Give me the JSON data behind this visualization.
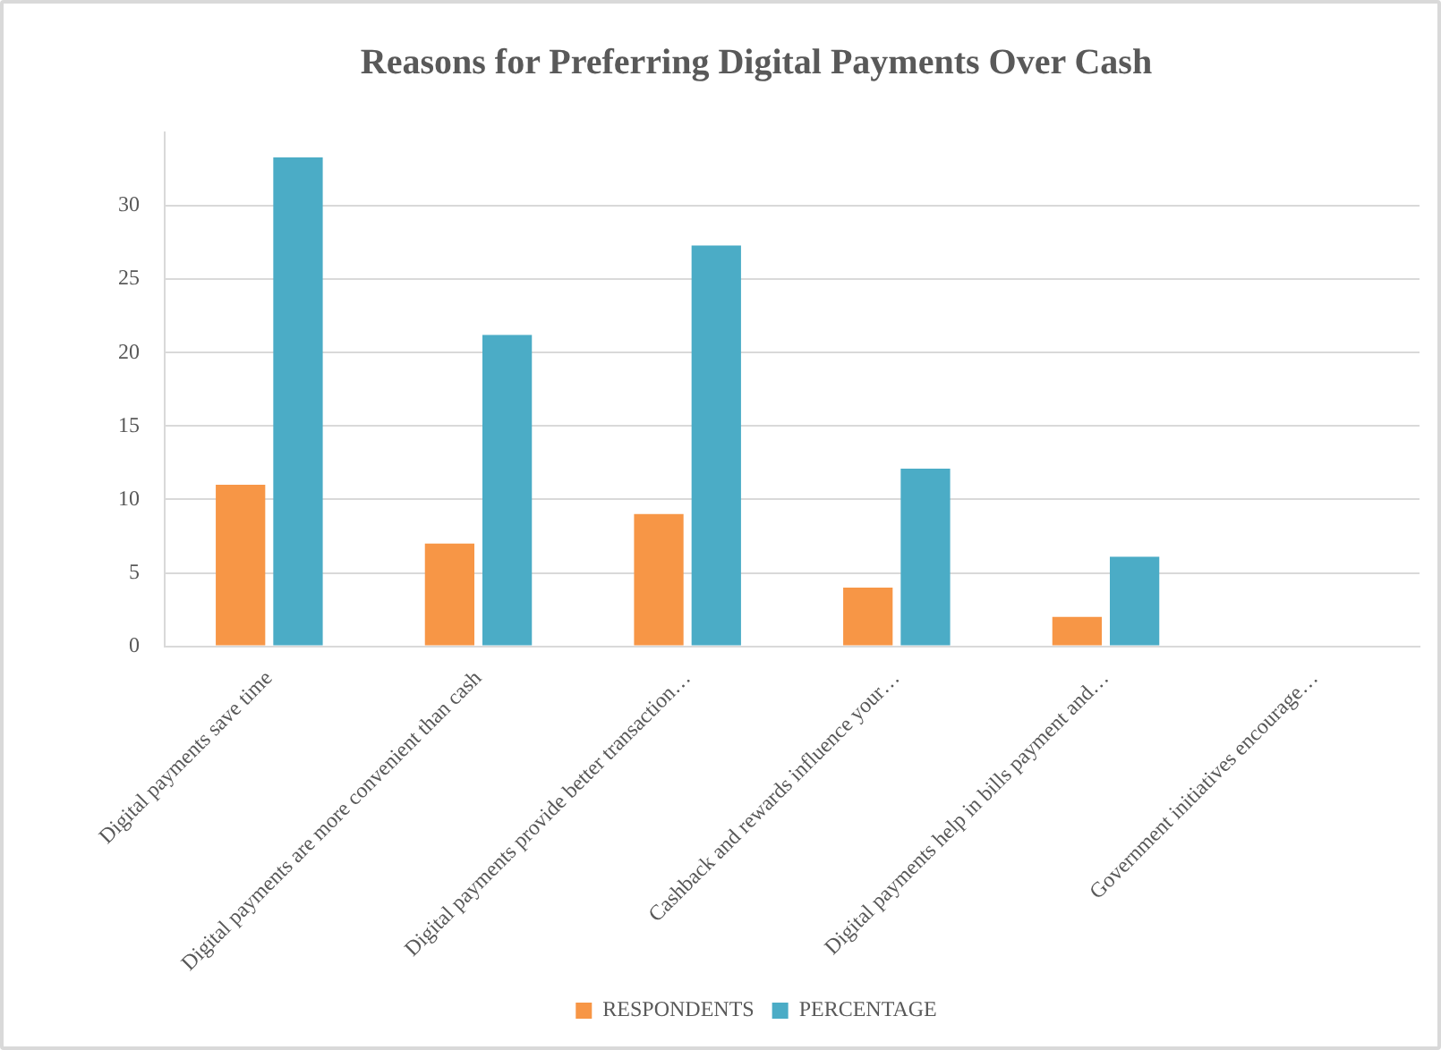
{
  "chart_data": {
    "type": "bar",
    "title": "Reasons for Preferring Digital Payments Over Cash",
    "categories": [
      "Digital payments save time",
      "Digital payments are more convenient than cash",
      "Digital payments provide better transaction…",
      "Cashback and rewards influence your…",
      "Digital payments help in bills payment and…",
      "Government initiatives encourage…"
    ],
    "series": [
      {
        "name": "RESPONDENTS",
        "color": "#f79646",
        "values": [
          11,
          7,
          9,
          4,
          2,
          0
        ]
      },
      {
        "name": "PERCENTAGE",
        "color": "#4bacc6",
        "values": [
          33.3,
          21.2,
          27.3,
          12.1,
          6.1,
          0
        ]
      }
    ],
    "ylim": [
      0,
      35
    ],
    "yticks": [
      0,
      5,
      10,
      15,
      20,
      25,
      30
    ],
    "grid": "y",
    "legend": "bottom"
  }
}
